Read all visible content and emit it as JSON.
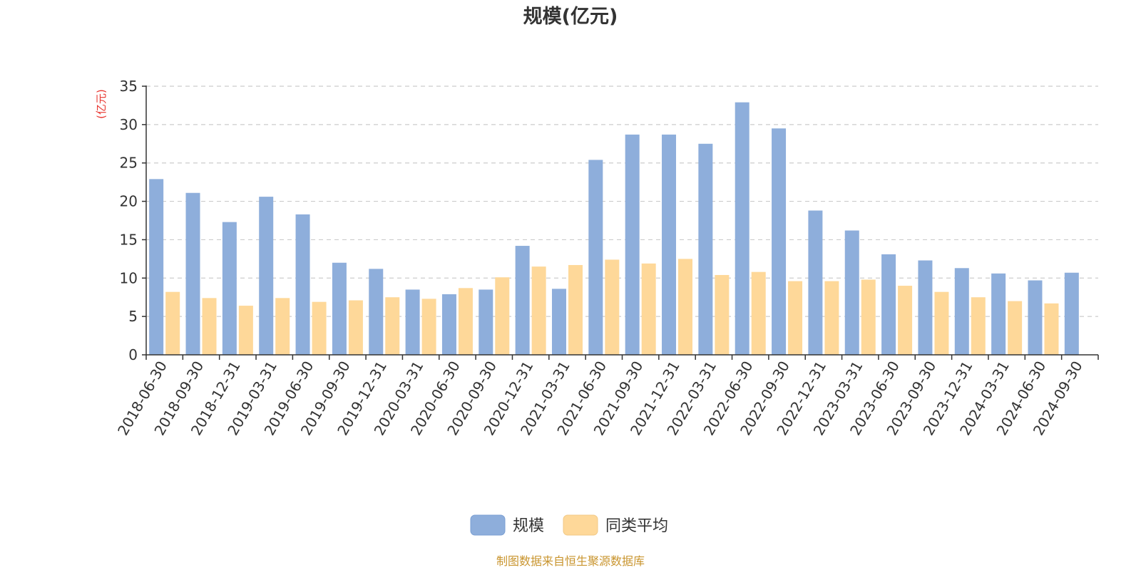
{
  "chart_data": {
    "type": "bar",
    "title": "规模(亿元)",
    "y_unit_label": "(亿元)",
    "ylim": [
      0,
      35
    ],
    "y_ticks": [
      0,
      5,
      10,
      15,
      20,
      25,
      30,
      35
    ],
    "grid": true,
    "legend_position": "bottom-center",
    "categories": [
      "2018-06-30",
      "2018-09-30",
      "2018-12-31",
      "2019-03-31",
      "2019-06-30",
      "2019-09-30",
      "2019-12-31",
      "2020-03-31",
      "2020-06-30",
      "2020-09-30",
      "2020-12-31",
      "2021-03-31",
      "2021-06-30",
      "2021-09-30",
      "2021-12-31",
      "2022-03-31",
      "2022-06-30",
      "2022-09-30",
      "2022-12-31",
      "2023-03-31",
      "2023-06-30",
      "2023-09-30",
      "2023-12-31",
      "2024-03-31",
      "2024-06-30",
      "2024-09-30"
    ],
    "series": [
      {
        "name": "规模",
        "color": "#8eaedb",
        "values": [
          22.9,
          21.1,
          17.3,
          20.6,
          18.3,
          12.0,
          11.2,
          8.5,
          7.9,
          8.5,
          14.2,
          8.6,
          25.4,
          28.7,
          28.7,
          27.5,
          32.9,
          29.5,
          18.8,
          16.2,
          13.1,
          12.3,
          11.3,
          10.6,
          9.7,
          10.7
        ]
      },
      {
        "name": "同类平均",
        "color": "#fed899",
        "values": [
          8.2,
          7.4,
          6.4,
          7.4,
          6.9,
          7.1,
          7.5,
          7.3,
          8.7,
          10.1,
          11.5,
          11.7,
          12.4,
          11.9,
          12.5,
          10.4,
          10.8,
          9.6,
          9.6,
          9.8,
          9.0,
          8.2,
          7.5,
          7.0,
          6.7,
          null
        ]
      }
    ]
  },
  "source_text": "制图数据来自恒生聚源数据库",
  "colors": {
    "unit_label": "#e8352f",
    "source_text": "#c9952f",
    "axis": "#333333",
    "grid": "#cccccc"
  }
}
